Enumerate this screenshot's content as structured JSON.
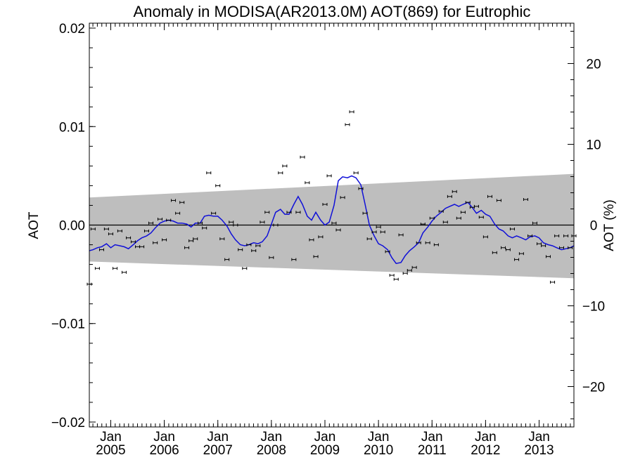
{
  "chart_data": {
    "type": "line",
    "title": "Anomaly in MODISA(AR2013.0M) AOT(869) for Eutrophic",
    "ylabel": "AOT",
    "ylabel_right": "AOT (%)",
    "xlabel": "",
    "xlim": [
      2004.6,
      2013.65
    ],
    "ylim": [
      -0.0205,
      0.0205
    ],
    "ylim_right": [
      -25,
      25
    ],
    "yticks": [
      {
        "value": 0.02,
        "label": "0.02"
      },
      {
        "value": 0.01,
        "label": "0.01"
      },
      {
        "value": 0.0,
        "label": "0.00"
      },
      {
        "value": -0.01,
        "label": "−0.01"
      },
      {
        "value": -0.02,
        "label": "−0.02"
      }
    ],
    "yticks_right": [
      {
        "value": 20,
        "label": "20"
      },
      {
        "value": 10,
        "label": "10"
      },
      {
        "value": 0,
        "label": "0"
      },
      {
        "value": -10,
        "label": "−10"
      },
      {
        "value": -20,
        "label": "−20"
      }
    ],
    "xticks": [
      {
        "value": 2005.0,
        "month": "Jan",
        "year": "2005"
      },
      {
        "value": 2006.0,
        "month": "Jan",
        "year": "2006"
      },
      {
        "value": 2007.0,
        "month": "Jan",
        "year": "2007"
      },
      {
        "value": 2008.0,
        "month": "Jan",
        "year": "2008"
      },
      {
        "value": 2009.0,
        "month": "Jan",
        "year": "2009"
      },
      {
        "value": 2010.0,
        "month": "Jan",
        "year": "2010"
      },
      {
        "value": 2011.0,
        "month": "Jan",
        "year": "2011"
      },
      {
        "value": 2012.0,
        "month": "Jan",
        "year": "2012"
      },
      {
        "value": 2013.0,
        "month": "Jan",
        "year": "2013"
      }
    ],
    "band": {
      "x": [
        2004.6,
        2013.65
      ],
      "upper": [
        0.0028,
        0.0052
      ],
      "lower": [
        -0.0037,
        -0.0054
      ],
      "color": "#bebebe"
    },
    "zero_line": 0.0,
    "series": [
      {
        "style": "points_with_errorbars",
        "color": "#000000",
        "x": [
          2004.6,
          2004.67,
          2004.75,
          2004.83,
          2004.92,
          2005.0,
          2005.08,
          2005.17,
          2005.25,
          2005.33,
          2005.42,
          2005.5,
          2005.58,
          2005.67,
          2005.75,
          2005.83,
          2005.92,
          2006.0,
          2006.08,
          2006.17,
          2006.25,
          2006.33,
          2006.42,
          2006.5,
          2006.58,
          2006.67,
          2006.75,
          2006.83,
          2006.92,
          2007.0,
          2007.08,
          2007.17,
          2007.25,
          2007.33,
          2007.42,
          2007.5,
          2007.58,
          2007.67,
          2007.75,
          2007.83,
          2007.92,
          2008.0,
          2008.08,
          2008.17,
          2008.25,
          2008.33,
          2008.42,
          2008.5,
          2008.58,
          2008.67,
          2008.75,
          2008.83,
          2008.92,
          2009.0,
          2009.08,
          2009.17,
          2009.25,
          2009.33,
          2009.42,
          2009.5,
          2009.58,
          2009.67,
          2009.75,
          2009.83,
          2009.92,
          2010.0,
          2010.08,
          2010.17,
          2010.25,
          2010.33,
          2010.42,
          2010.5,
          2010.58,
          2010.67,
          2010.75,
          2010.83,
          2010.92,
          2011.0,
          2011.08,
          2011.17,
          2011.25,
          2011.33,
          2011.42,
          2011.5,
          2011.58,
          2011.67,
          2011.75,
          2011.83,
          2011.92,
          2012.0,
          2012.08,
          2012.17,
          2012.25,
          2012.33,
          2012.42,
          2012.5,
          2012.58,
          2012.67,
          2012.75,
          2012.83,
          2012.92,
          2013.0,
          2013.08,
          2013.17,
          2013.25,
          2013.33,
          2013.42,
          2013.5,
          2013.58,
          2013.65
        ],
        "y": [
          -0.006,
          -0.0004,
          -0.0044,
          -0.0025,
          -0.0004,
          -0.0009,
          -0.0044,
          -0.0006,
          -0.0048,
          -0.0013,
          -0.0017,
          -0.0022,
          -0.0022,
          -0.0006,
          0.0002,
          -0.0018,
          0.0006,
          -0.0015,
          0.0005,
          0.0025,
          0.0012,
          0.0023,
          -0.0023,
          -0.0016,
          -0.0014,
          0.0002,
          -0.0003,
          0.0053,
          0.0012,
          0.004,
          -0.0014,
          -0.0035,
          0.0003,
          0.0,
          -0.0025,
          -0.0044,
          -0.002,
          -0.0026,
          -0.0021,
          0.0003,
          0.0013,
          -0.0033,
          0.0,
          0.0053,
          0.006,
          0.0013,
          -0.0035,
          0.0013,
          0.0069,
          0.0043,
          -0.0015,
          -0.0032,
          -0.0012,
          0.0021,
          0.005,
          0.0002,
          -0.0005,
          0.0028,
          0.0102,
          0.0115,
          0.0053,
          0.0037,
          0.0012,
          -0.0014,
          -0.0007,
          -0.0002,
          -0.0007,
          -0.0027,
          -0.0051,
          -0.0055,
          -0.001,
          -0.0049,
          -0.0046,
          -0.0043,
          -0.0018,
          0.0001,
          -0.0018,
          0.0007,
          -0.002,
          0.0014,
          0.0003,
          0.0029,
          0.0034,
          0.0007,
          0.0013,
          0.0023,
          0.0018,
          0.0019,
          0.0008,
          -0.0012,
          0.0029,
          -0.0028,
          0.0025,
          -0.0023,
          -0.0025,
          -0.0004,
          -0.0035,
          -0.0029,
          0.0026,
          -0.0011,
          0.0002,
          -0.0019,
          -0.0021,
          -0.0032,
          -0.0058,
          -0.0011,
          -0.0023,
          -0.0011,
          -0.0023,
          -0.0011
        ]
      },
      {
        "style": "line",
        "color": "#1010d8",
        "x": [
          2004.6,
          2004.67,
          2004.75,
          2004.83,
          2004.92,
          2005.0,
          2005.08,
          2005.17,
          2005.25,
          2005.33,
          2005.42,
          2005.5,
          2005.58,
          2005.67,
          2005.75,
          2005.83,
          2005.92,
          2006.0,
          2006.08,
          2006.17,
          2006.25,
          2006.33,
          2006.42,
          2006.5,
          2006.58,
          2006.67,
          2006.75,
          2006.83,
          2006.92,
          2007.0,
          2007.08,
          2007.17,
          2007.25,
          2007.33,
          2007.42,
          2007.5,
          2007.58,
          2007.67,
          2007.75,
          2007.83,
          2007.92,
          2008.0,
          2008.08,
          2008.17,
          2008.25,
          2008.33,
          2008.42,
          2008.5,
          2008.58,
          2008.67,
          2008.75,
          2008.83,
          2008.92,
          2009.0,
          2009.08,
          2009.17,
          2009.25,
          2009.33,
          2009.42,
          2009.5,
          2009.58,
          2009.67,
          2009.75,
          2009.83,
          2009.92,
          2010.0,
          2010.08,
          2010.17,
          2010.25,
          2010.33,
          2010.42,
          2010.5,
          2010.58,
          2010.67,
          2010.75,
          2010.83,
          2010.92,
          2011.0,
          2011.08,
          2011.17,
          2011.25,
          2011.33,
          2011.42,
          2011.5,
          2011.58,
          2011.67,
          2011.75,
          2011.83,
          2011.92,
          2012.0,
          2012.08,
          2012.17,
          2012.25,
          2012.33,
          2012.42,
          2012.5,
          2012.58,
          2012.67,
          2012.75,
          2012.83,
          2012.92,
          2013.0,
          2013.08,
          2013.17,
          2013.25,
          2013.33,
          2013.42,
          2013.5,
          2013.58,
          2013.65
        ],
        "y": [
          -0.0026,
          -0.0025,
          -0.0023,
          -0.0022,
          -0.0019,
          -0.0023,
          -0.002,
          -0.0021,
          -0.0022,
          -0.0024,
          -0.002,
          -0.0016,
          -0.0013,
          -0.0011,
          -0.0008,
          -0.0003,
          0.0002,
          0.0004,
          0.0005,
          0.0004,
          0.0002,
          0.0002,
          0.0001,
          -0.0002,
          0.0002,
          0.0002,
          0.0009,
          0.001,
          0.0009,
          0.0009,
          0.0005,
          -0.0001,
          -0.0009,
          -0.0015,
          -0.002,
          -0.0021,
          -0.002,
          -0.0018,
          -0.0019,
          -0.0017,
          -0.0011,
          0.0001,
          0.0013,
          0.0016,
          0.0011,
          0.0011,
          0.0021,
          0.0029,
          0.0021,
          0.0009,
          0.0005,
          0.0013,
          0.0005,
          0.0,
          0.0003,
          0.002,
          0.0045,
          0.0049,
          0.0048,
          0.005,
          0.0048,
          0.0041,
          0.0021,
          0.0,
          -0.0011,
          -0.0019,
          -0.0021,
          -0.0025,
          -0.0033,
          -0.0039,
          -0.0038,
          -0.0031,
          -0.0026,
          -0.0022,
          -0.0018,
          -0.0008,
          -0.0002,
          0.0004,
          0.0009,
          0.0013,
          0.0017,
          0.0019,
          0.0021,
          0.0019,
          0.0021,
          0.0023,
          0.0018,
          0.0012,
          0.0015,
          0.0011,
          0.0009,
          0.0001,
          -0.0004,
          -0.0006,
          -0.0011,
          -0.0013,
          -0.0011,
          -0.0013,
          -0.0015,
          -0.0012,
          -0.0011,
          -0.0013,
          -0.0018,
          -0.002,
          -0.0021,
          -0.0023,
          -0.0025,
          -0.0024,
          -0.0023,
          -0.0021
        ]
      }
    ]
  }
}
